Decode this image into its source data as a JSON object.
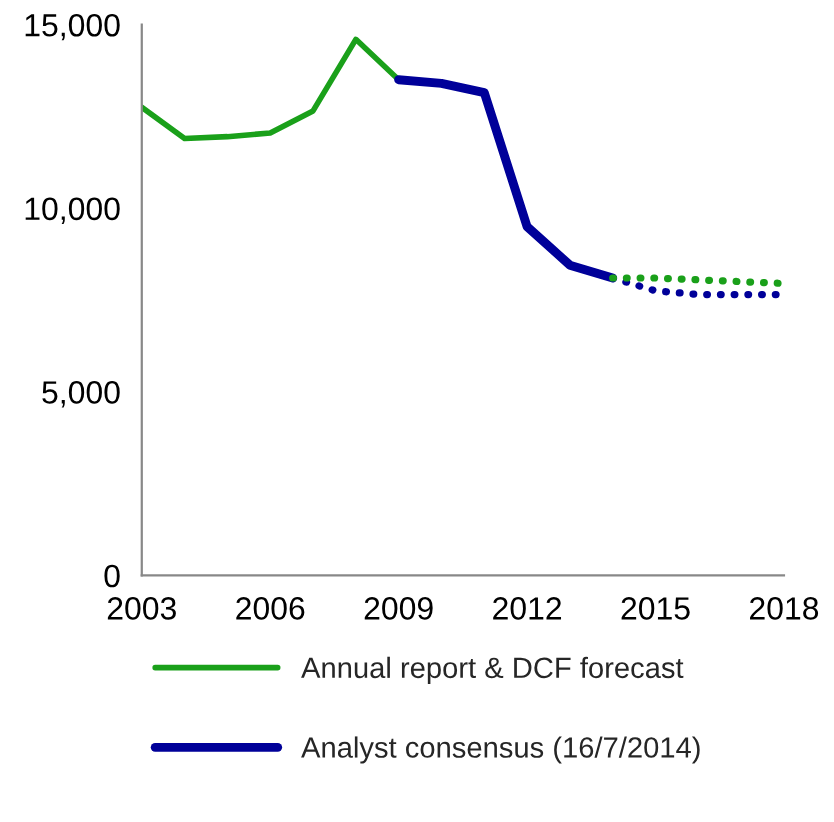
{
  "chart_data": {
    "type": "line",
    "xlim": [
      2003,
      2018
    ],
    "xticks": [
      2003,
      2006,
      2009,
      2012,
      2015,
      2018
    ],
    "ylim": [
      0,
      15000
    ],
    "yticks": [
      {
        "value": 0,
        "label": "0"
      },
      {
        "value": 5000,
        "label": "5,000"
      },
      {
        "value": 10000,
        "label": "10,000"
      },
      {
        "value": 15000,
        "label": "15,000"
      }
    ],
    "grid": false,
    "legend": "bottom",
    "marker": "none",
    "series": [
      {
        "name": "Annual report & DCF forecast",
        "color": "#1aa01a",
        "line_style": "solid",
        "x": [
          2003,
          2004,
          2005,
          2006,
          2007,
          2008,
          2009
        ],
        "values": [
          12750,
          11900,
          11950,
          12050,
          12650,
          14600,
          13500
        ]
      },
      {
        "name": "Analyst consensus (16/7/2014)",
        "color": "#000099",
        "line_style": "solid",
        "x": [
          2009,
          2010,
          2011,
          2012,
          2013,
          2014
        ],
        "values": [
          13500,
          13400,
          13150,
          9500,
          8450,
          8100
        ]
      },
      {
        "color": "#1aa01a",
        "line_style": "dotted",
        "x": [
          2014,
          2015,
          2016,
          2017,
          2018
        ],
        "values": [
          8100,
          8100,
          8050,
          8000,
          7950
        ]
      },
      {
        "color": "#000099",
        "line_style": "dotted",
        "x": [
          2014,
          2015,
          2016,
          2017,
          2018
        ],
        "values": [
          8100,
          7750,
          7650,
          7650,
          7650
        ]
      }
    ]
  }
}
